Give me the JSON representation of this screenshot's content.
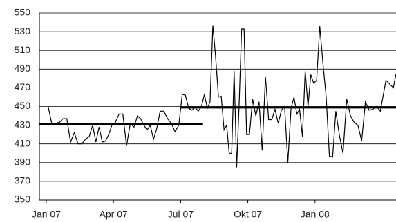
{
  "chart_data": {
    "type": "line",
    "x": [
      "2007-01",
      "2007-01",
      "2007-01",
      "2007-01",
      "2007-01",
      "2007-01",
      "2007-02",
      "2007-02",
      "2007-02",
      "2007-02",
      "2007-02",
      "2007-02",
      "2007-03",
      "2007-03",
      "2007-03",
      "2007-03",
      "2007-03",
      "2007-03",
      "2007-03",
      "2007-04",
      "2007-04",
      "2007-04",
      "2007-04",
      "2007-04",
      "2007-04",
      "2007-05",
      "2007-05",
      "2007-05",
      "2007-05",
      "2007-05",
      "2007-05",
      "2007-05",
      "2007-06",
      "2007-06",
      "2007-06",
      "2007-06",
      "2007-06",
      "2007-06",
      "2007-07",
      "2007-07",
      "2007-07",
      "2007-07",
      "2007-07",
      "2007-07",
      "2007-07",
      "2007-08",
      "2007-08",
      "2007-08",
      "2007-08",
      "2007-08",
      "2007-08",
      "2007-08",
      "2007-08",
      "2007-09",
      "2007-09",
      "2007-09",
      "2007-09",
      "2007-09",
      "2007-09",
      "2007-09",
      "2007-09",
      "2007-09",
      "2007-10",
      "2007-10",
      "2007-10",
      "2007-10",
      "2007-10",
      "2007-10",
      "2007-10",
      "2007-11",
      "2007-11",
      "2007-11",
      "2007-11",
      "2007-11",
      "2007-11",
      "2007-11",
      "2007-12",
      "2007-12",
      "2007-12",
      "2007-12",
      "2007-12",
      "2007-12",
      "2007-12",
      "2007-12",
      "2008-01",
      "2008-01",
      "2008-01",
      "2008-01",
      "2008-01",
      "2008-01",
      "2008-01",
      "2008-02",
      "2008-02",
      "2008-02",
      "2008-02",
      "2008-02",
      "2008-02",
      "2008-03",
      "2008-03",
      "2008-03",
      "2008-03",
      "2008-03",
      "2008-03",
      "2008-04",
      "2008-04",
      "2008-04"
    ],
    "series": [
      {
        "color": "#000000",
        "values": [
          450,
          431,
          432,
          433,
          437,
          437,
          412,
          422,
          410,
          410,
          415,
          418,
          430,
          412,
          428,
          412,
          413,
          420,
          430,
          433,
          442,
          442,
          408,
          432,
          428,
          440,
          437,
          430,
          425,
          430,
          415,
          426,
          445,
          445,
          437,
          432,
          423,
          430,
          463,
          462,
          448,
          446,
          449,
          445,
          450,
          463,
          448,
          455,
          537,
          503,
          460,
          461,
          425,
          430,
          400,
          400,
          488,
          385,
          452,
          533,
          533,
          420,
          420,
          458,
          440,
          455,
          403,
          482,
          436,
          436,
          447,
          432,
          446,
          450,
          390,
          448,
          460,
          442,
          447,
          418,
          488,
          450,
          484,
          475,
          478,
          536,
          495,
          460,
          397,
          396,
          445,
          420,
          400,
          458,
          440,
          433,
          430,
          413,
          455,
          446,
          447,
          450,
          445,
          478,
          470,
          485
        ]
      }
    ],
    "reference_lines": [
      {
        "value": 431,
        "from": "2007-01",
        "to": "2007-07"
      },
      {
        "value": 449,
        "from": "2007-07",
        "to": "2008-04"
      }
    ],
    "xlim": [
      "2007-01",
      "2008-04"
    ],
    "xticks": [
      {
        "value": "2007-01",
        "label": "Jan 07"
      },
      {
        "value": "2007-04",
        "label": "Apr 07"
      },
      {
        "value": "2007-07",
        "label": "Jul 07"
      },
      {
        "value": "2007-10",
        "label": "Okt 07"
      },
      {
        "value": "2008-01",
        "label": "Jan 08"
      }
    ],
    "ylim": [
      350,
      550
    ],
    "yticks": [
      350,
      370,
      390,
      410,
      430,
      450,
      470,
      490,
      510,
      530,
      550
    ],
    "grid": true
  }
}
